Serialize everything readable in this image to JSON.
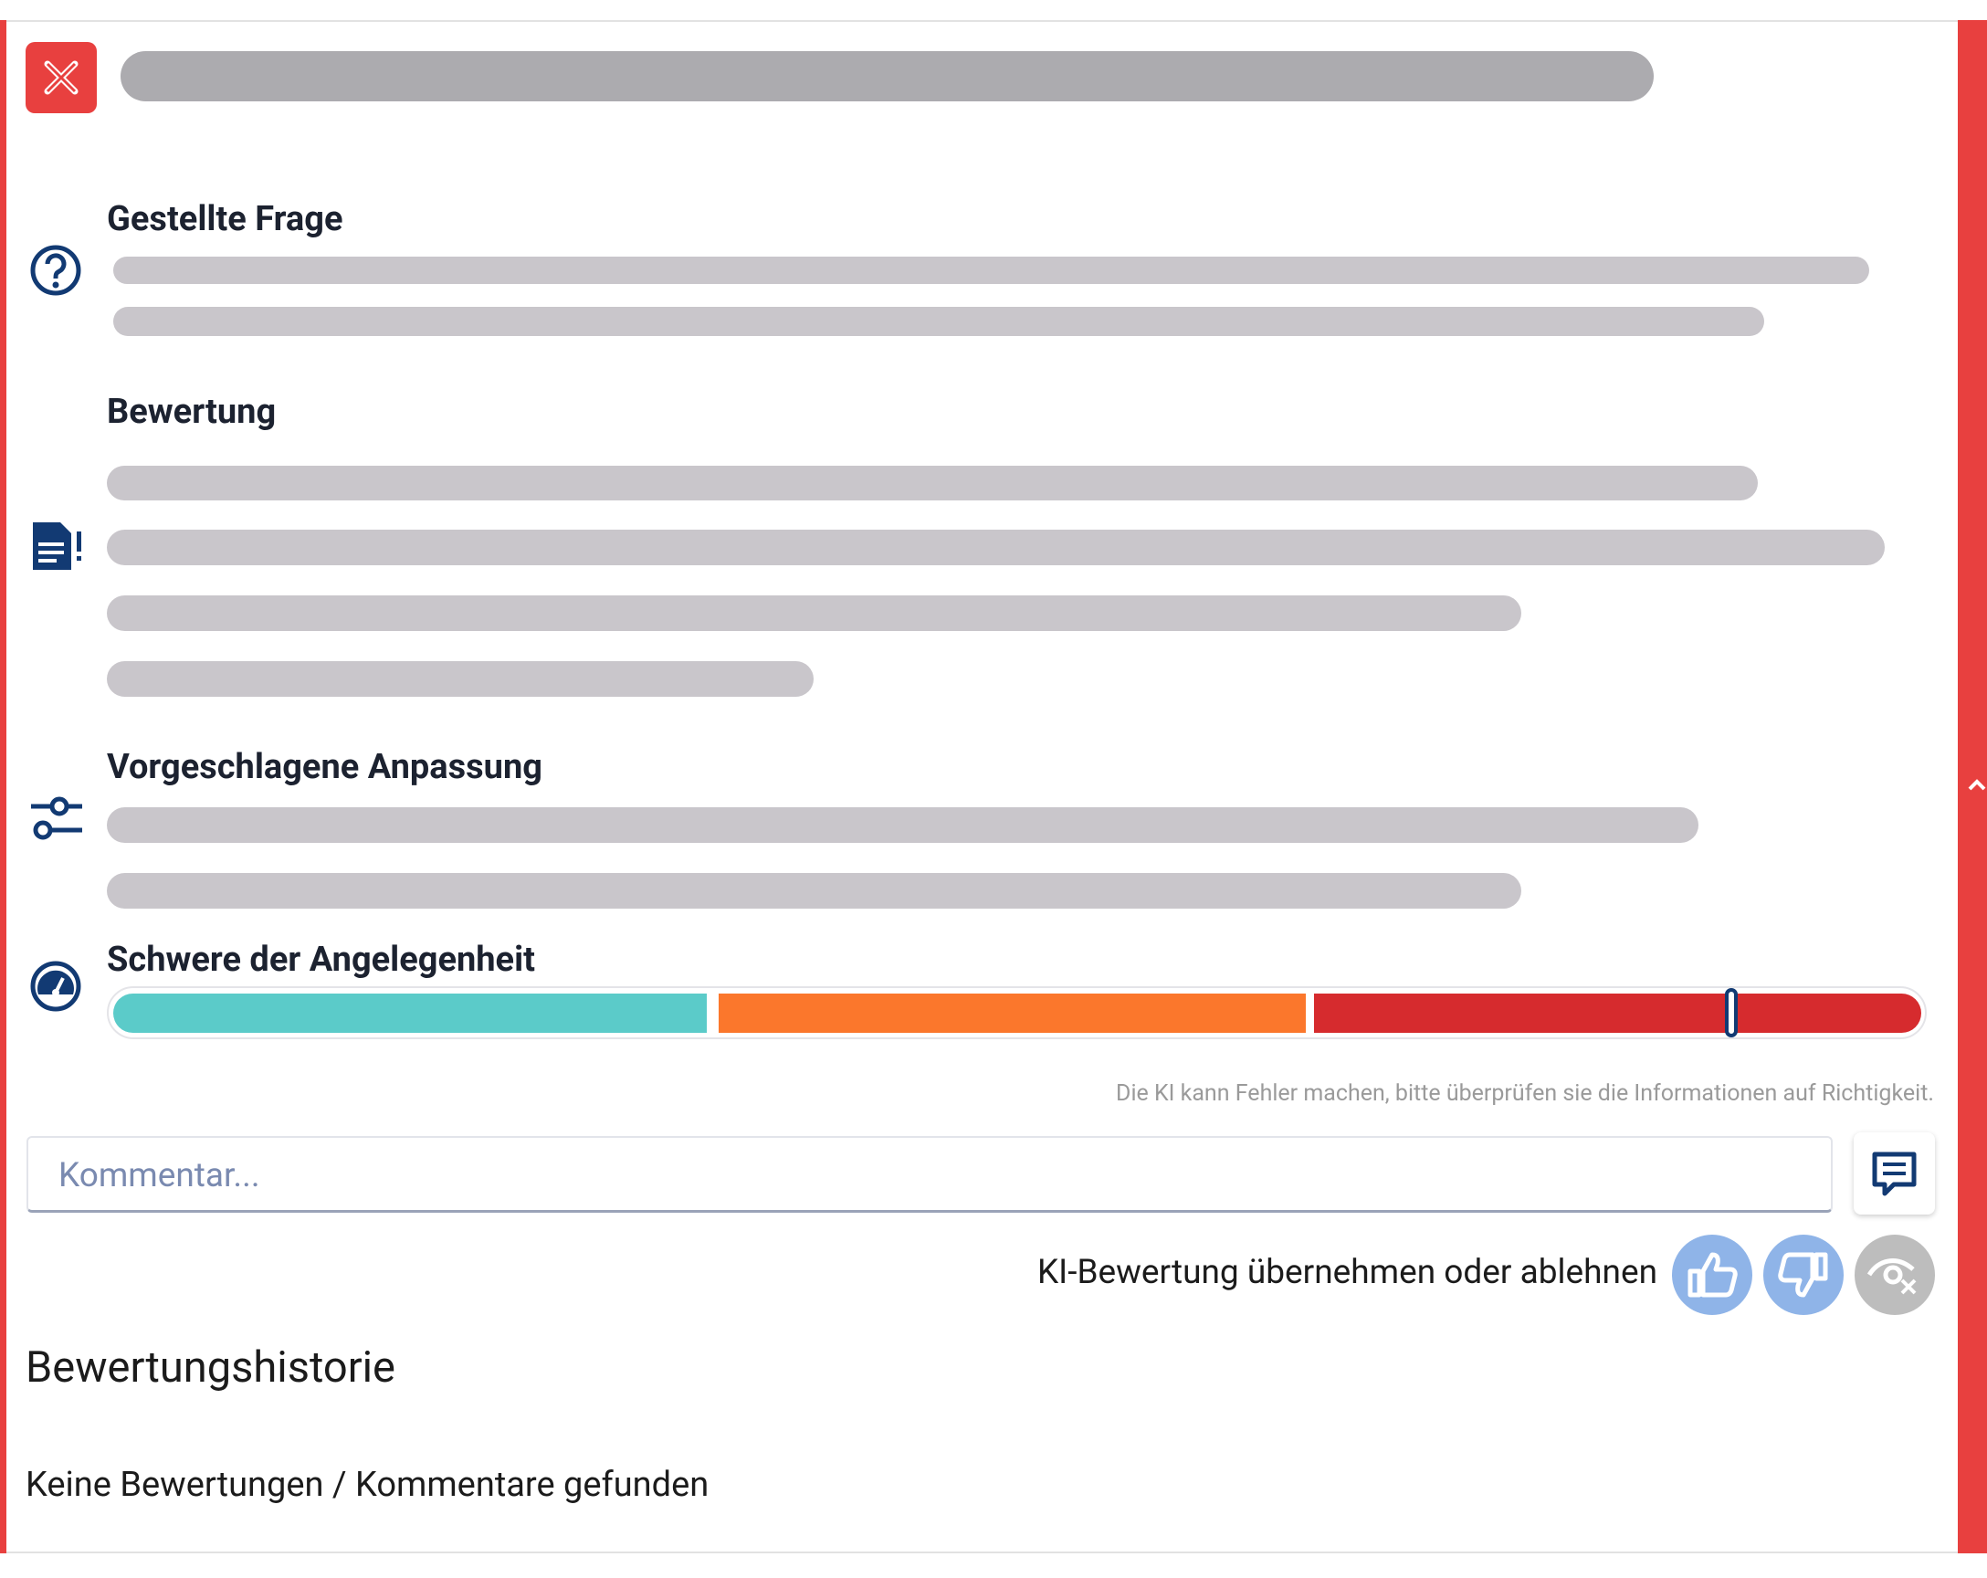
{
  "sections": [
    {
      "heading": "Gestellte Frage"
    },
    {
      "heading": "Bewertung"
    },
    {
      "heading": "Vorgeschlagene Anpassung"
    },
    {
      "heading": "Schwere der Angelegenheit"
    }
  ],
  "disclaimer": "Die KI kann Fehler machen, bitte überprüfen sie die Informationen auf Richtigkeit.",
  "comment": {
    "placeholder": "Kommentar..."
  },
  "feedback": {
    "label": "KI-Bewertung übernehmen oder ablehnen"
  },
  "history": {
    "title": "Bewertungshistorie",
    "empty_message": "Keine Bewertungen / Kommentare gefunden"
  }
}
